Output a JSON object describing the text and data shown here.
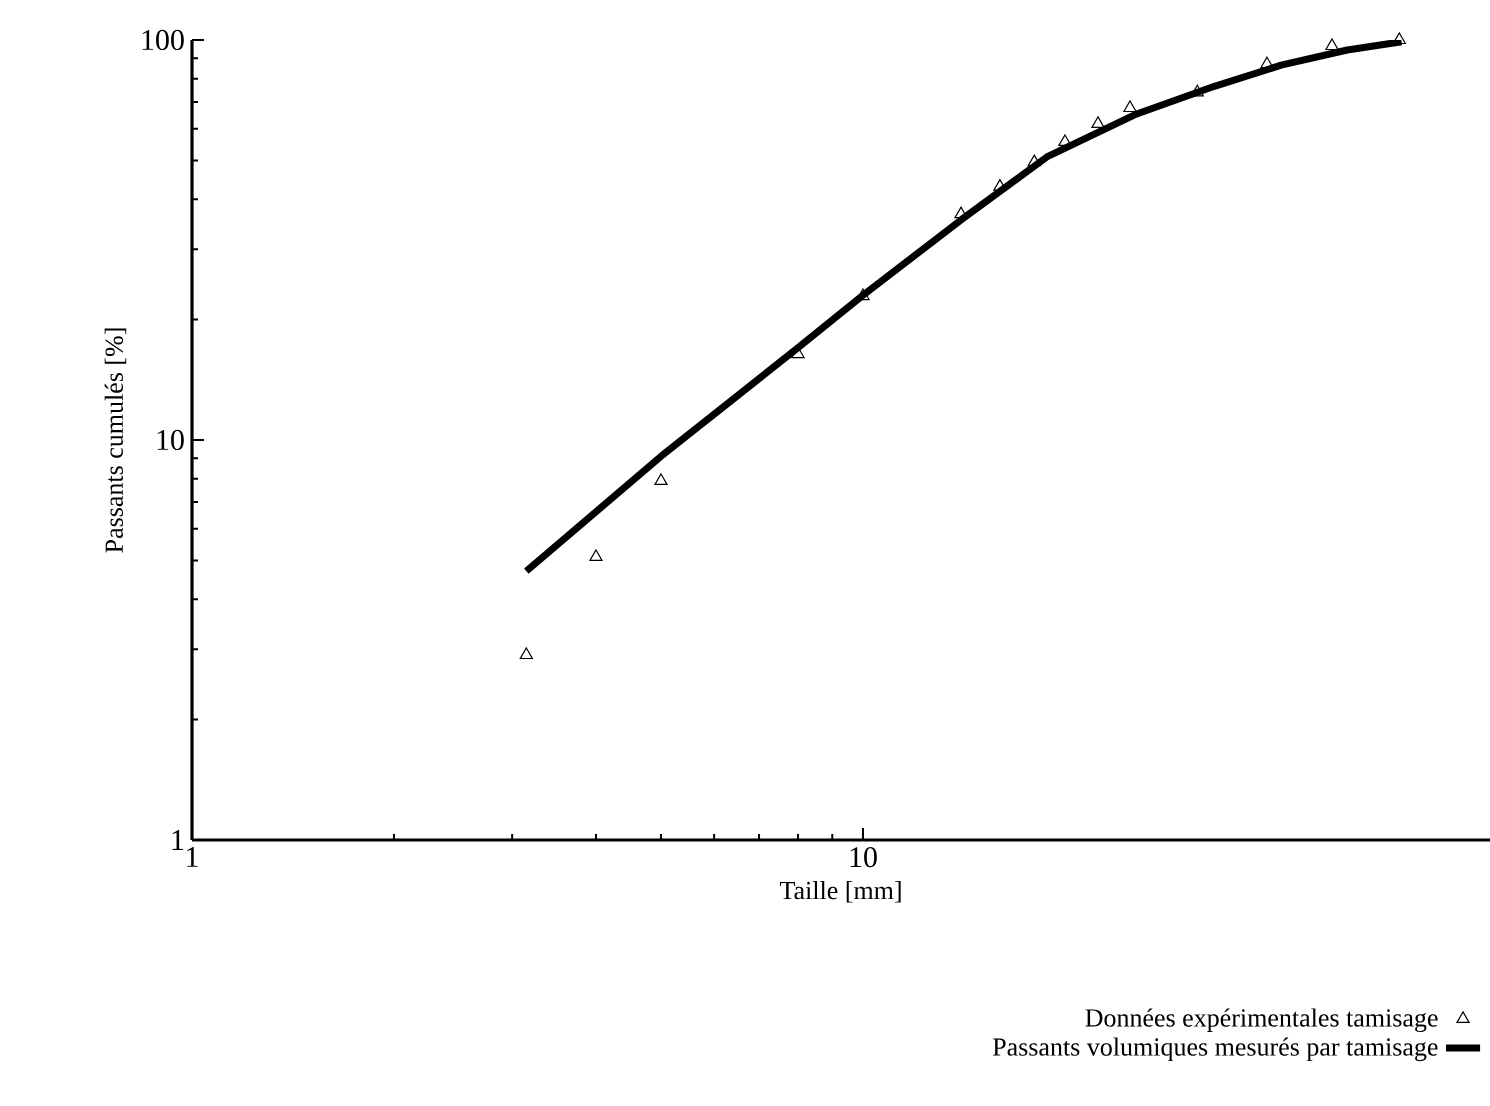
{
  "chart_data": {
    "type": "scatter",
    "xlabel": "Taille [mm]",
    "ylabel": "Passants cumulés [%]",
    "log": "xy",
    "xlim": [
      1,
      86
    ],
    "ylim": [
      1,
      100
    ],
    "xticks": [
      1,
      10
    ],
    "yticks": [
      1,
      10,
      100
    ],
    "grid": false,
    "legend": "bottom",
    "series": [
      {
        "name": "Données expérimentales tamisage",
        "type": "scatter",
        "marker": "triangle",
        "color": "#000000",
        "x": [
          3.15,
          4,
          5,
          8,
          10,
          14,
          16,
          18,
          20,
          22.4,
          25,
          31.5,
          40,
          50,
          63
        ],
        "values": [
          2.9,
          5.1,
          7.9,
          16.4,
          22.9,
          36.7,
          43,
          49.5,
          55.6,
          61.7,
          67.6,
          74,
          87,
          96.6,
          100
        ]
      },
      {
        "name": "Passants volumiques mesurés par tamisage",
        "type": "line",
        "marker": "none",
        "line_style": "solid",
        "color": "#000000",
        "x": [
          3.15,
          5,
          8,
          10,
          14,
          18.8,
          25.4,
          33.4,
          42,
          52.7,
          63.5
        ],
        "values": [
          4.7,
          9.1,
          17,
          23,
          35.5,
          51,
          65,
          76.6,
          86.5,
          94.4,
          99
        ]
      }
    ]
  }
}
